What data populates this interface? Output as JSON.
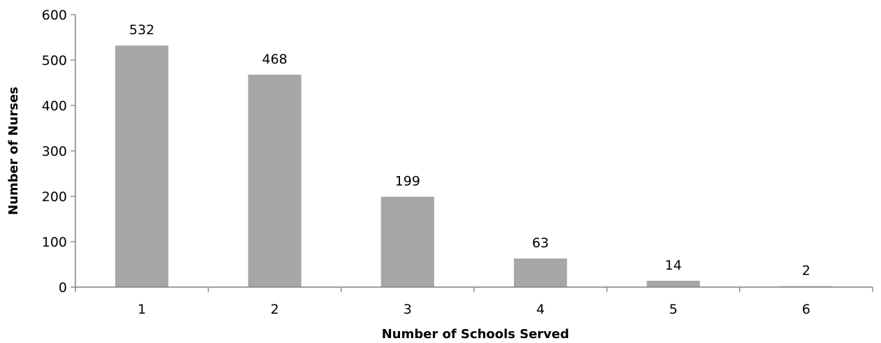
{
  "chart_data": {
    "type": "bar",
    "title": "",
    "xlabel": "Number of Schools Served",
    "ylabel": "Number of Nurses",
    "categories": [
      "1",
      "2",
      "3",
      "4",
      "5",
      "6"
    ],
    "values": [
      532,
      468,
      199,
      63,
      14,
      2
    ],
    "data_labels": [
      "532",
      "468",
      "199",
      "63",
      "14",
      "2"
    ],
    "ylim": [
      0,
      600
    ],
    "yticks": [
      0,
      100,
      200,
      300,
      400,
      500,
      600
    ],
    "ytick_labels": [
      "0",
      "100",
      "200",
      "300",
      "400",
      "500",
      "600"
    ],
    "grid": false,
    "legend": "none",
    "bar_color": "#a6a6a6",
    "axis_color": "#808080"
  }
}
